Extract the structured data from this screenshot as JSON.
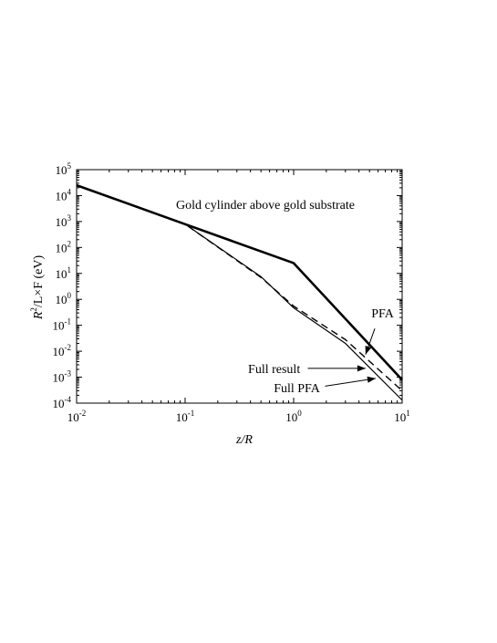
{
  "chart_data": {
    "type": "line",
    "title": "Gold cylinder above gold substrate",
    "xlabel": "z/R",
    "ylabel": {
      "main": "R",
      "sup": "2",
      "rest": "/L×F (eV)"
    },
    "xscale": "log",
    "yscale": "log",
    "xlim": [
      0.01,
      10
    ],
    "ylim": [
      0.0001,
      100000
    ],
    "x_ticks": [
      {
        "value": 0.01,
        "base": "10",
        "exp": "-2"
      },
      {
        "value": 0.1,
        "base": "10",
        "exp": "-1"
      },
      {
        "value": 1,
        "base": "10",
        "exp": "0"
      },
      {
        "value": 10,
        "base": "10",
        "exp": "1"
      }
    ],
    "y_ticks": [
      {
        "value": 0.0001,
        "base": "10",
        "exp": "-4"
      },
      {
        "value": 0.001,
        "base": "10",
        "exp": "-3"
      },
      {
        "value": 0.01,
        "base": "10",
        "exp": "-2"
      },
      {
        "value": 0.1,
        "base": "10",
        "exp": "-1"
      },
      {
        "value": 1,
        "base": "10",
        "exp": "0"
      },
      {
        "value": 10,
        "base": "10",
        "exp": "1"
      },
      {
        "value": 100,
        "base": "10",
        "exp": "2"
      },
      {
        "value": 1000,
        "base": "10",
        "exp": "3"
      },
      {
        "value": 10000,
        "base": "10",
        "exp": "4"
      },
      {
        "value": 100000,
        "base": "10",
        "exp": "5"
      }
    ],
    "series": [
      {
        "name": "PFA",
        "style": "thick-solid",
        "points": [
          [
            0.01,
            25000
          ],
          [
            0.1,
            790
          ],
          [
            1,
            25
          ],
          [
            10,
            0.00079
          ]
        ]
      },
      {
        "name": "Full result",
        "style": "thin-solid",
        "points": [
          [
            0.01,
            25000
          ],
          [
            0.1,
            790
          ],
          [
            0.5,
            7.5
          ],
          [
            1,
            0.47
          ],
          [
            3,
            0.02
          ],
          [
            10,
            0.00013
          ]
        ]
      },
      {
        "name": "Full PFA",
        "style": "dashed",
        "points": [
          [
            0.01,
            25000
          ],
          [
            0.1,
            790
          ],
          [
            0.5,
            7.0
          ],
          [
            1,
            0.55
          ],
          [
            3,
            0.028
          ],
          [
            10,
            0.0003
          ]
        ]
      }
    ],
    "annotations": [
      {
        "label": "PFA",
        "text_at": [
          5.2,
          0.3
        ],
        "arrow_from": [
          5.6,
          0.075
        ],
        "arrow_to": [
          4.6,
          0.0075
        ]
      },
      {
        "label": "Full result",
        "text_at": [
          1.15,
          0.0022
        ],
        "arrow_from": [
          1.35,
          0.0022
        ],
        "arrow_to": [
          4.6,
          0.0022
        ]
      },
      {
        "label": "Full PFA",
        "text_at": [
          1.75,
          0.0004
        ],
        "arrow_from": [
          1.95,
          0.00045
        ],
        "arrow_to": [
          5.7,
          0.0009
        ]
      }
    ],
    "grid": false,
    "legend": "none"
  }
}
